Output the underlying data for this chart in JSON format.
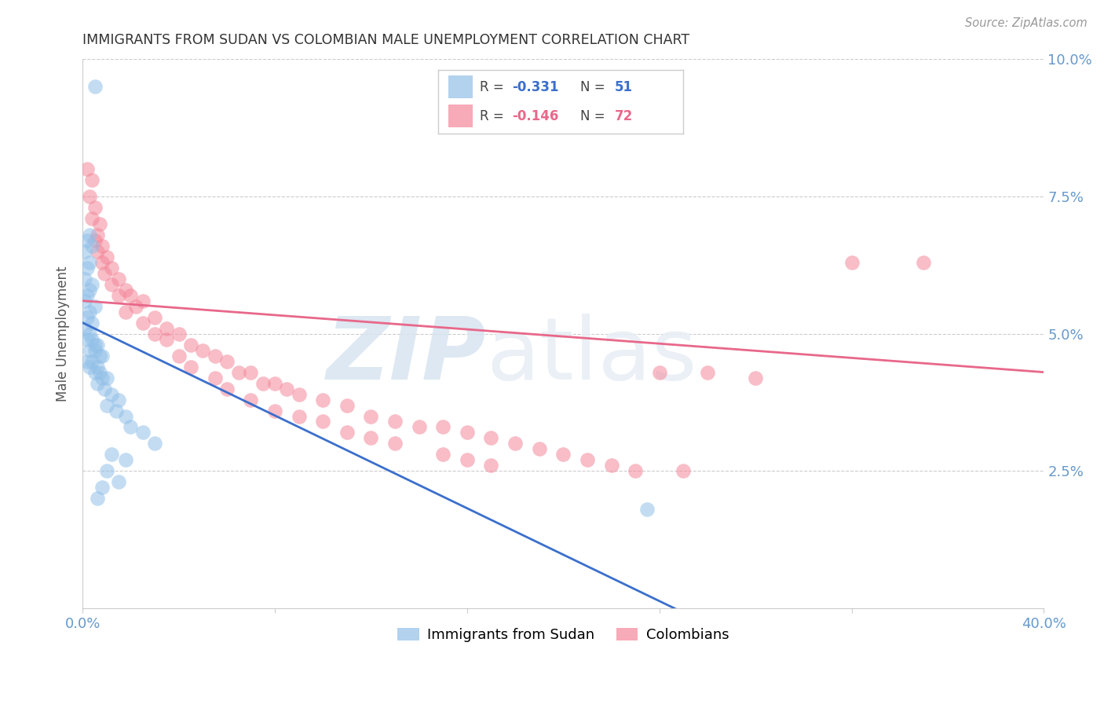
{
  "title": "IMMIGRANTS FROM SUDAN VS COLOMBIAN MALE UNEMPLOYMENT CORRELATION CHART",
  "source": "Source: ZipAtlas.com",
  "ylabel": "Male Unemployment",
  "watermark_zip": "ZIP",
  "watermark_atlas": "atlas",
  "xlim": [
    0.0,
    0.4
  ],
  "ylim": [
    0.0,
    0.1
  ],
  "blue_color": "#92C0E8",
  "pink_color": "#F4879A",
  "blue_line_color": "#3B6FCC",
  "pink_line_color": "#E8688A",
  "axis_tick_color": "#6699CC",
  "grid_color": "#CCCCCC",
  "title_color": "#333333",
  "source_color": "#999999",
  "sudan_points": [
    [
      0.005,
      0.095
    ],
    [
      0.003,
      0.068
    ],
    [
      0.002,
      0.067
    ],
    [
      0.004,
      0.066
    ],
    [
      0.001,
      0.065
    ],
    [
      0.003,
      0.063
    ],
    [
      0.002,
      0.062
    ],
    [
      0.001,
      0.06
    ],
    [
      0.004,
      0.059
    ],
    [
      0.003,
      0.058
    ],
    [
      0.002,
      0.057
    ],
    [
      0.001,
      0.056
    ],
    [
      0.005,
      0.055
    ],
    [
      0.003,
      0.054
    ],
    [
      0.002,
      0.053
    ],
    [
      0.004,
      0.052
    ],
    [
      0.001,
      0.051
    ],
    [
      0.003,
      0.05
    ],
    [
      0.002,
      0.049
    ],
    [
      0.004,
      0.049
    ],
    [
      0.005,
      0.048
    ],
    [
      0.006,
      0.048
    ],
    [
      0.003,
      0.047
    ],
    [
      0.005,
      0.047
    ],
    [
      0.007,
      0.046
    ],
    [
      0.008,
      0.046
    ],
    [
      0.002,
      0.045
    ],
    [
      0.004,
      0.045
    ],
    [
      0.006,
      0.044
    ],
    [
      0.003,
      0.044
    ],
    [
      0.007,
      0.043
    ],
    [
      0.005,
      0.043
    ],
    [
      0.008,
      0.042
    ],
    [
      0.01,
      0.042
    ],
    [
      0.006,
      0.041
    ],
    [
      0.009,
      0.04
    ],
    [
      0.012,
      0.039
    ],
    [
      0.015,
      0.038
    ],
    [
      0.01,
      0.037
    ],
    [
      0.014,
      0.036
    ],
    [
      0.018,
      0.035
    ],
    [
      0.02,
      0.033
    ],
    [
      0.025,
      0.032
    ],
    [
      0.03,
      0.03
    ],
    [
      0.012,
      0.028
    ],
    [
      0.018,
      0.027
    ],
    [
      0.01,
      0.025
    ],
    [
      0.015,
      0.023
    ],
    [
      0.008,
      0.022
    ],
    [
      0.006,
      0.02
    ],
    [
      0.235,
      0.018
    ]
  ],
  "colombia_points": [
    [
      0.003,
      0.075
    ],
    [
      0.005,
      0.073
    ],
    [
      0.004,
      0.071
    ],
    [
      0.007,
      0.07
    ],
    [
      0.006,
      0.068
    ],
    [
      0.005,
      0.067
    ],
    [
      0.008,
      0.066
    ],
    [
      0.006,
      0.065
    ],
    [
      0.01,
      0.064
    ],
    [
      0.008,
      0.063
    ],
    [
      0.012,
      0.062
    ],
    [
      0.009,
      0.061
    ],
    [
      0.015,
      0.06
    ],
    [
      0.012,
      0.059
    ],
    [
      0.018,
      0.058
    ],
    [
      0.015,
      0.057
    ],
    [
      0.02,
      0.057
    ],
    [
      0.025,
      0.056
    ],
    [
      0.022,
      0.055
    ],
    [
      0.018,
      0.054
    ],
    [
      0.03,
      0.053
    ],
    [
      0.025,
      0.052
    ],
    [
      0.035,
      0.051
    ],
    [
      0.03,
      0.05
    ],
    [
      0.04,
      0.05
    ],
    [
      0.035,
      0.049
    ],
    [
      0.045,
      0.048
    ],
    [
      0.05,
      0.047
    ],
    [
      0.04,
      0.046
    ],
    [
      0.055,
      0.046
    ],
    [
      0.06,
      0.045
    ],
    [
      0.045,
      0.044
    ],
    [
      0.065,
      0.043
    ],
    [
      0.07,
      0.043
    ],
    [
      0.055,
      0.042
    ],
    [
      0.075,
      0.041
    ],
    [
      0.08,
      0.041
    ],
    [
      0.06,
      0.04
    ],
    [
      0.085,
      0.04
    ],
    [
      0.09,
      0.039
    ],
    [
      0.07,
      0.038
    ],
    [
      0.1,
      0.038
    ],
    [
      0.11,
      0.037
    ],
    [
      0.08,
      0.036
    ],
    [
      0.12,
      0.035
    ],
    [
      0.09,
      0.035
    ],
    [
      0.13,
      0.034
    ],
    [
      0.1,
      0.034
    ],
    [
      0.14,
      0.033
    ],
    [
      0.15,
      0.033
    ],
    [
      0.11,
      0.032
    ],
    [
      0.16,
      0.032
    ],
    [
      0.12,
      0.031
    ],
    [
      0.17,
      0.031
    ],
    [
      0.18,
      0.03
    ],
    [
      0.13,
      0.03
    ],
    [
      0.19,
      0.029
    ],
    [
      0.2,
      0.028
    ],
    [
      0.15,
      0.028
    ],
    [
      0.21,
      0.027
    ],
    [
      0.16,
      0.027
    ],
    [
      0.22,
      0.026
    ],
    [
      0.17,
      0.026
    ],
    [
      0.23,
      0.025
    ],
    [
      0.002,
      0.08
    ],
    [
      0.004,
      0.078
    ],
    [
      0.32,
      0.063
    ],
    [
      0.35,
      0.063
    ],
    [
      0.24,
      0.043
    ],
    [
      0.26,
      0.043
    ],
    [
      0.28,
      0.042
    ],
    [
      0.25,
      0.025
    ]
  ]
}
